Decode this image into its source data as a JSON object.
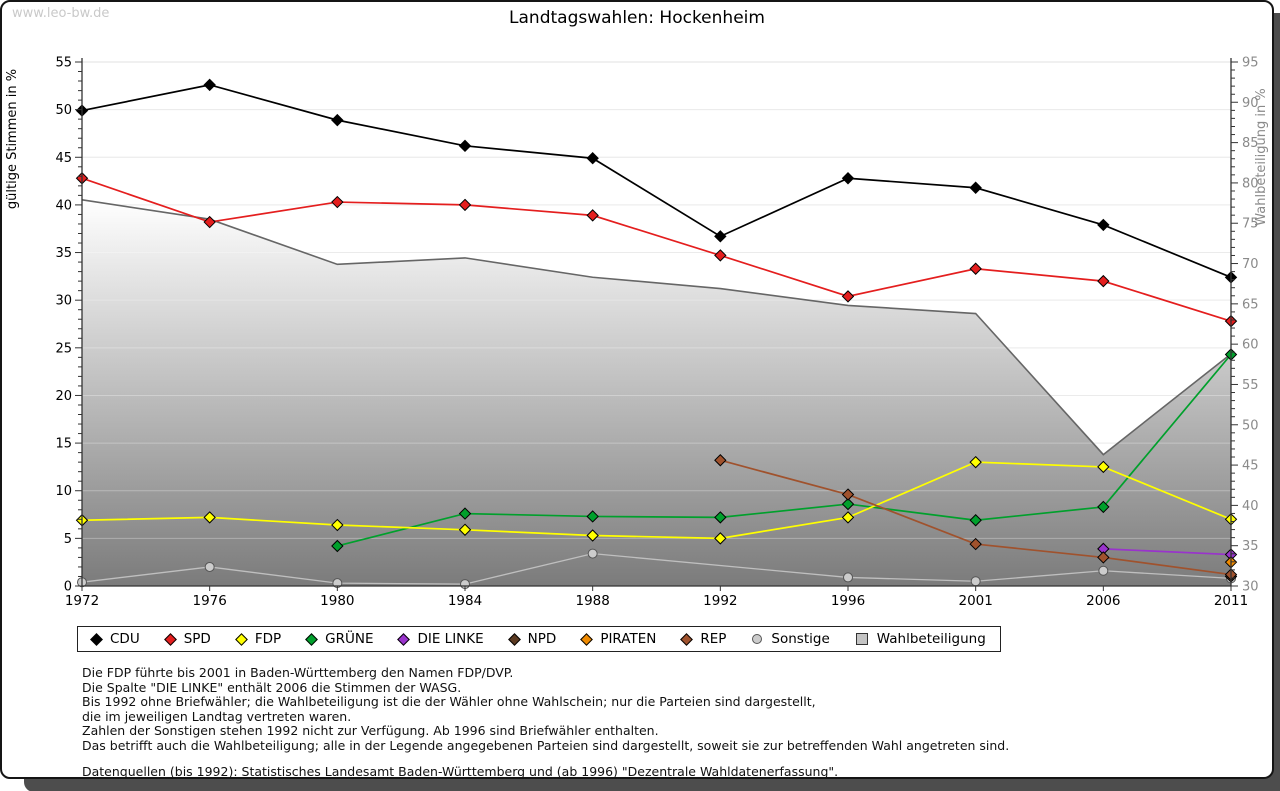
{
  "window": {
    "watermark": "www.leo-bw.de"
  },
  "title": "Landtagswahlen: Hockenheim",
  "chart_data": {
    "type": "line",
    "title": "Landtagswahlen: Hockenheim",
    "categories": [
      "1972",
      "1976",
      "1980",
      "1984",
      "1988",
      "1992",
      "1996",
      "2001",
      "2006",
      "2011"
    ],
    "grid": true,
    "legend_position": "bottom",
    "y_left": {
      "label": "gültige Stimmen in %",
      "range": [
        0,
        55
      ],
      "tick_step": 5,
      "minor_step": 1
    },
    "y_right": {
      "label": "Wahlbeteiligung in %",
      "range": [
        30,
        95
      ],
      "tick_step": 5,
      "minor_step": 1
    },
    "series": [
      {
        "name": "CDU",
        "axis": "left",
        "marker": "diamond",
        "color": "#000000",
        "values": [
          49.9,
          52.6,
          48.9,
          46.2,
          44.9,
          36.7,
          42.8,
          41.8,
          37.9,
          32.4
        ]
      },
      {
        "name": "SPD",
        "axis": "left",
        "marker": "diamond",
        "color": "#e41e1e",
        "values": [
          42.8,
          38.2,
          40.3,
          40.0,
          38.9,
          34.7,
          30.4,
          33.3,
          32.0,
          27.8
        ]
      },
      {
        "name": "FDP",
        "axis": "left",
        "marker": "diamond",
        "color": "#ffff00",
        "values": [
          6.9,
          7.2,
          6.4,
          5.9,
          5.3,
          5.0,
          7.2,
          13.0,
          12.5,
          7.0
        ]
      },
      {
        "name": "GRÜNE",
        "axis": "left",
        "marker": "diamond",
        "color": "#00a02c",
        "values": [
          null,
          null,
          4.2,
          7.6,
          7.3,
          7.2,
          8.6,
          6.9,
          8.3,
          24.3
        ]
      },
      {
        "name": "DIE LINKE",
        "axis": "left",
        "marker": "diamond",
        "color": "#9933cc",
        "values": [
          null,
          null,
          null,
          null,
          null,
          null,
          null,
          null,
          3.9,
          3.3
        ]
      },
      {
        "name": "NPD",
        "axis": "left",
        "marker": "diamond",
        "color": "#5b3a21",
        "values": [
          null,
          null,
          null,
          null,
          null,
          null,
          null,
          null,
          null,
          1.0
        ]
      },
      {
        "name": "PIRATEN",
        "axis": "left",
        "marker": "diamond",
        "color": "#ef8a00",
        "values": [
          null,
          null,
          null,
          null,
          null,
          null,
          null,
          null,
          null,
          2.5
        ]
      },
      {
        "name": "REP",
        "axis": "left",
        "marker": "diamond",
        "color": "#a0522d",
        "values": [
          null,
          null,
          null,
          null,
          null,
          13.2,
          9.6,
          4.4,
          3.0,
          1.2
        ]
      },
      {
        "name": "Sonstige",
        "axis": "left",
        "marker": "circle",
        "color": "#cccccc",
        "line_color": "#bfbfbf",
        "values": [
          0.4,
          2.0,
          0.3,
          0.2,
          3.4,
          null,
          0.9,
          0.5,
          1.6,
          0.8
        ]
      },
      {
        "name": "Wahlbeteiligung",
        "axis": "right",
        "marker": "square",
        "type": "area",
        "color": "#c4c4c4",
        "gradient_top": "#ffffff",
        "gradient_bottom": "#7b7b7b",
        "edge_color": "#666666",
        "values": [
          77.9,
          75.5,
          69.9,
          70.7,
          68.3,
          66.9,
          64.8,
          63.8,
          46.3,
          58.8
        ]
      }
    ]
  },
  "footnotes": {
    "lines": [
      "Die FDP führte bis 2001 in Baden-Württemberg den Namen FDP/DVP.",
      "Die Spalte \"DIE LINKE\" enthält 2006 die Stimmen der WASG.",
      "Bis 1992 ohne Briefwähler; die Wahlbeteiligung ist die der Wähler ohne Wahlschein; nur die Parteien sind dargestellt,",
      "die im jeweiligen Landtag vertreten waren.",
      "Zahlen der Sonstigen stehen 1992 nicht zur Verfügung. Ab 1996 sind Briefwähler enthalten.",
      "Das betrifft auch die Wahlbeteiligung; alle in der Legende angegebenen Parteien sind dargestellt, soweit sie zur betreffenden Wahl angetreten sind."
    ],
    "source": "Datenquellen (bis 1992): Statistisches Landesamt Baden-Württemberg und (ab 1996) \"Dezentrale Wahldatenerfassung\"."
  }
}
